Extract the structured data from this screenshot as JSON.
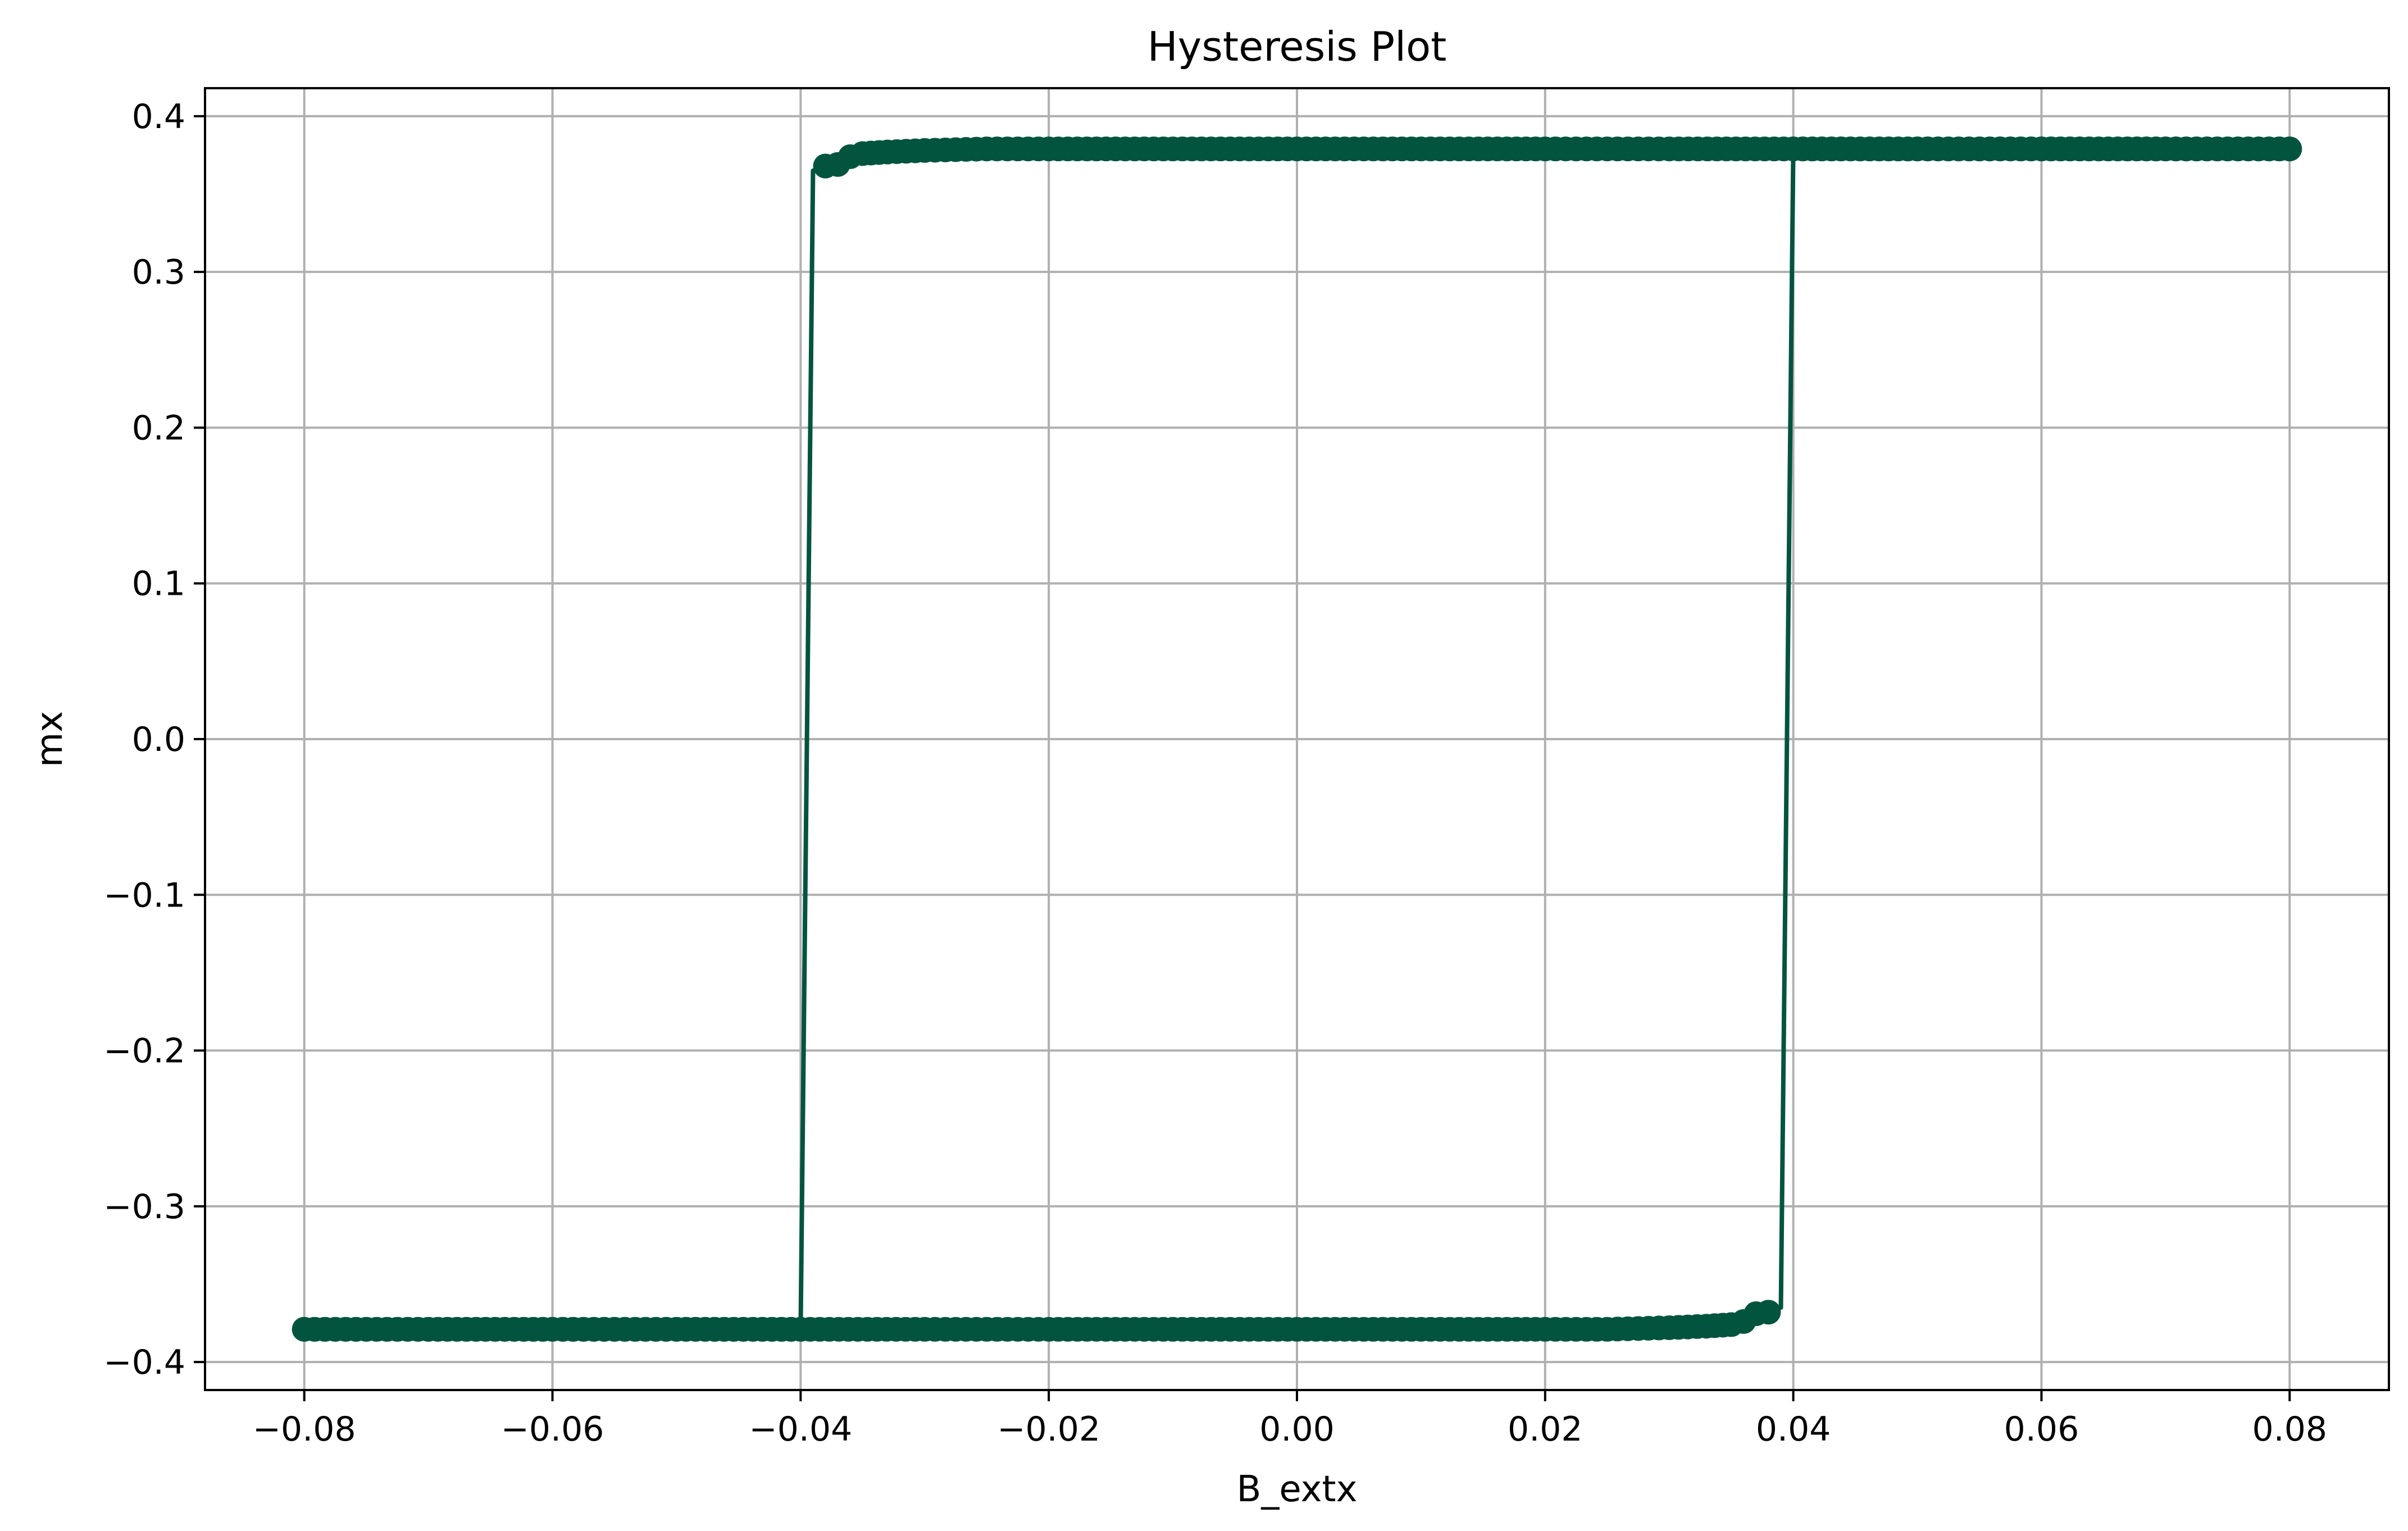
{
  "chart_data": {
    "type": "line",
    "title": "Hysteresis Plot",
    "xlabel": "B_extx",
    "ylabel": "mx",
    "xlim": [
      -0.088,
      0.088
    ],
    "ylim": [
      -0.418,
      0.418
    ],
    "xticks": [
      -0.08,
      -0.06,
      -0.04,
      -0.02,
      0.0,
      0.02,
      0.04,
      0.06,
      0.08
    ],
    "xtick_labels": [
      "−0.08",
      "−0.06",
      "−0.04",
      "−0.02",
      "0.00",
      "0.02",
      "0.04",
      "0.06",
      "0.08"
    ],
    "yticks": [
      -0.4,
      -0.3,
      -0.2,
      -0.1,
      0.0,
      0.1,
      0.2,
      0.3,
      0.4
    ],
    "ytick_labels": [
      "−0.4",
      "−0.3",
      "−0.2",
      "−0.1",
      "0.0",
      "0.1",
      "0.2",
      "0.3",
      "0.4"
    ],
    "grid": true,
    "marker": "circle",
    "color": "#03543f",
    "series": [
      {
        "branch": "descending",
        "x": [
          0.08,
          0.07,
          0.06,
          0.05,
          0.04,
          0.03,
          0.02,
          0.01,
          0.0,
          -0.01,
          -0.02,
          -0.025,
          -0.03,
          -0.033,
          -0.035,
          -0.036,
          -0.037,
          -0.038,
          -0.039,
          -0.04,
          -0.05,
          -0.06,
          -0.07,
          -0.08
        ],
        "y": [
          0.379,
          0.379,
          0.379,
          0.379,
          0.379,
          0.379,
          0.379,
          0.379,
          0.379,
          0.379,
          0.379,
          0.379,
          0.378,
          0.377,
          0.376,
          0.374,
          0.369,
          0.368,
          0.365,
          -0.379,
          -0.379,
          -0.379,
          -0.379,
          -0.379
        ]
      },
      {
        "branch": "ascending",
        "x": [
          -0.08,
          -0.07,
          -0.06,
          -0.05,
          -0.04,
          -0.03,
          -0.02,
          -0.01,
          0.0,
          0.01,
          0.02,
          0.025,
          0.03,
          0.033,
          0.035,
          0.036,
          0.037,
          0.038,
          0.039,
          0.04,
          0.05,
          0.06,
          0.07,
          0.08
        ],
        "y": [
          -0.379,
          -0.379,
          -0.379,
          -0.379,
          -0.379,
          -0.379,
          -0.379,
          -0.379,
          -0.379,
          -0.379,
          -0.379,
          -0.379,
          -0.378,
          -0.377,
          -0.376,
          -0.374,
          -0.369,
          -0.368,
          -0.365,
          0.379,
          0.379,
          0.379,
          0.379,
          0.379
        ]
      }
    ]
  }
}
